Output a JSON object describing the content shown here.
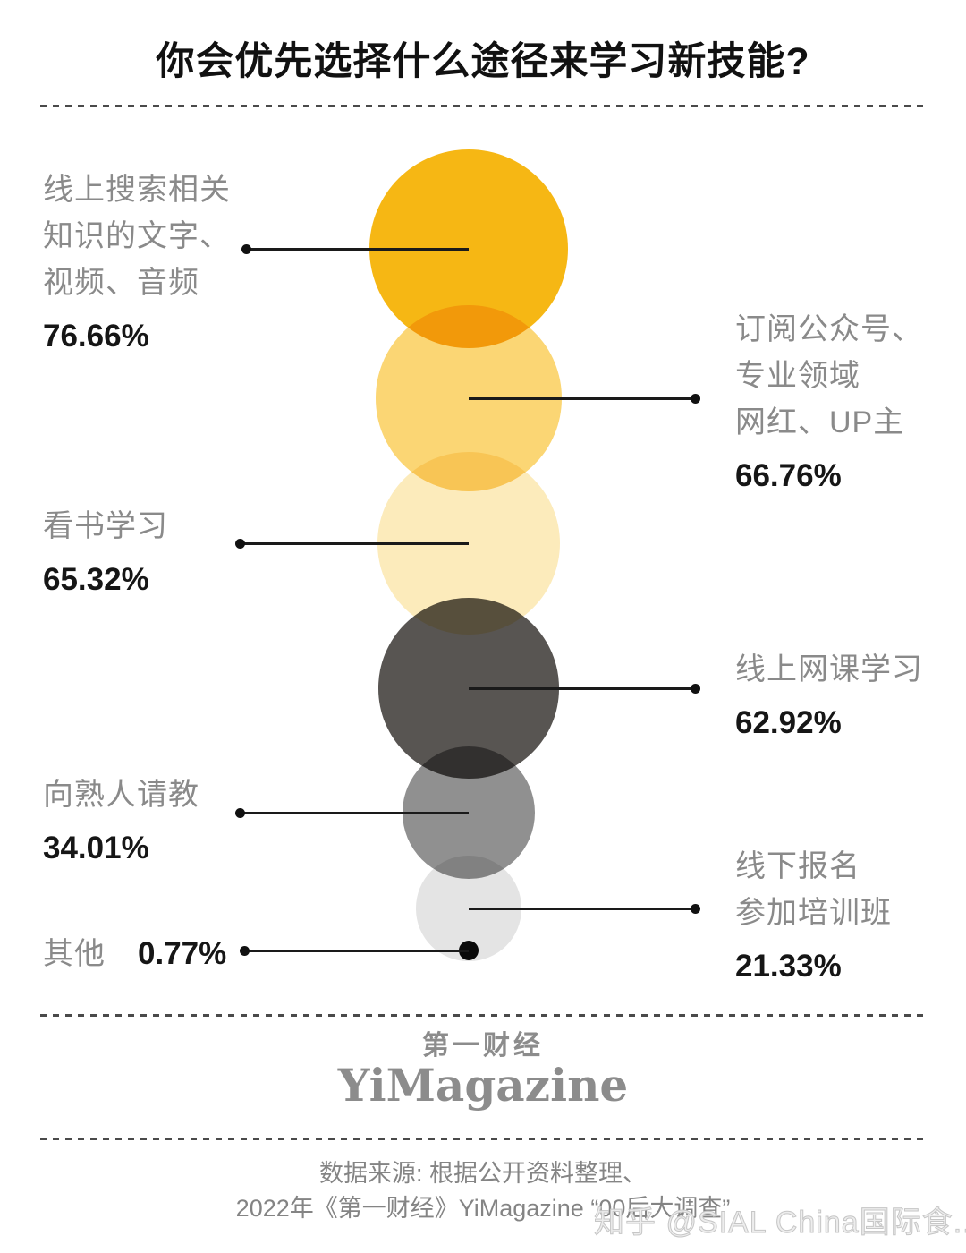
{
  "title": "你会优先选择什么途径来学习新技能?",
  "chart_data": {
    "type": "bubble",
    "title": "你会优先选择什么途径来学习新技能?",
    "unit": "%",
    "note": "bubble area proportional to percentage",
    "items": [
      {
        "label": "线上搜索相关知识的文字、视频、音频",
        "label_lines": [
          "线上搜索相关",
          "知识的文字、",
          "视频、音频"
        ],
        "value": 76.66,
        "percent_label": "76.66%",
        "color": "#F6B714",
        "side": "left"
      },
      {
        "label": "订阅公众号、专业领域网红、UP主",
        "label_lines": [
          "订阅公众号、",
          "专业领域",
          "网红、UP主"
        ],
        "value": 66.76,
        "percent_label": "66.76%",
        "color": "#FBD674",
        "side": "right"
      },
      {
        "label": "看书学习",
        "label_lines": [
          "看书学习"
        ],
        "value": 65.32,
        "percent_label": "65.32%",
        "color": "#FCEBBB",
        "side": "left"
      },
      {
        "label": "线上网课学习",
        "label_lines": [
          "线上网课学习"
        ],
        "value": 62.92,
        "percent_label": "62.92%",
        "color": "#585552",
        "side": "right"
      },
      {
        "label": "向熟人请教",
        "label_lines": [
          "向熟人请教"
        ],
        "value": 34.01,
        "percent_label": "34.01%",
        "color": "#909090",
        "side": "left"
      },
      {
        "label": "线下报名参加培训班",
        "label_lines": [
          "线下报名",
          "参加培训班"
        ],
        "value": 21.33,
        "percent_label": "21.33%",
        "color": "#E4E4E4",
        "side": "right"
      },
      {
        "label": "其他",
        "label_lines": [
          "其他"
        ],
        "value": 0.77,
        "percent_label": "0.77%",
        "color": "#0B0B0B",
        "side": "left"
      }
    ]
  },
  "footer": {
    "logo_cn": "第一财经",
    "logo_en": "YiMagazine",
    "source_line1": "数据来源: 根据公开资料整理、",
    "source_line2": "2022年《第一财经》YiMagazine “00后大调查”",
    "watermark": "知乎 @SIAL China国际食..."
  },
  "colors": {
    "title_text": "#111111",
    "category_text": "#8A8A8A",
    "percent_text": "#161616",
    "leader_line": "#1A1A1A",
    "logo_text": "#8C8C8C",
    "source_text": "#848484",
    "watermark_text": "#ECECEC"
  }
}
